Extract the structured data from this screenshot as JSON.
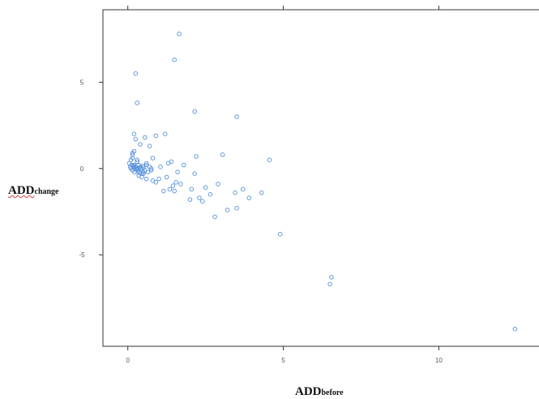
{
  "chart_data": {
    "type": "scatter",
    "xlabel": {
      "main": "ADD",
      "sub": "before"
    },
    "ylabel": {
      "main": "ADD",
      "sub": "change"
    },
    "xlim": [
      -0.8,
      13.3
    ],
    "ylim": [
      -10.3,
      9.2
    ],
    "x_ticks": [
      0,
      5,
      10
    ],
    "y_ticks": [
      -5,
      0,
      5
    ],
    "grid": false,
    "marker": "open-circle",
    "color": "#4a88d8",
    "series": [
      {
        "x": [
          0.05,
          0.08,
          0.1,
          0.12,
          0.15,
          0.18,
          0.2,
          0.22,
          0.25,
          0.28,
          0.3,
          0.32,
          0.35,
          0.38,
          0.4,
          0.42,
          0.45,
          0.48,
          0.5,
          0.55,
          0.6,
          0.65,
          0.7,
          0.75,
          0.8,
          0.1,
          0.15,
          0.2,
          0.3,
          0.35,
          0.45,
          0.55,
          0.6,
          0.75,
          0.9,
          1.0,
          1.05,
          1.15,
          1.25,
          1.3,
          1.35,
          1.4,
          1.45,
          1.5,
          1.55,
          1.6,
          1.7,
          1.8,
          2.0,
          2.05,
          2.15,
          2.2,
          2.3,
          2.4,
          2.5,
          2.65,
          2.8,
          2.9,
          3.05,
          3.2,
          3.45,
          3.5,
          3.7,
          3.9,
          4.3,
          4.55,
          0.2,
          0.25,
          0.3,
          0.15,
          0.25,
          1.5,
          1.65,
          2.15,
          3.5,
          4.9,
          6.55,
          6.5,
          12.45,
          0.7,
          0.9,
          0.15,
          0.4,
          0.6,
          1.2,
          0.3,
          0.5,
          0.2,
          0.35,
          0.5,
          0.8
        ],
        "y": [
          0.3,
          0.1,
          0.0,
          0.2,
          -0.1,
          0.15,
          0.05,
          -0.2,
          0.1,
          -0.05,
          0.0,
          -0.15,
          0.2,
          -0.25,
          0.1,
          0.0,
          -0.3,
          0.15,
          0.05,
          -0.1,
          0.2,
          -0.2,
          0.1,
          0.0,
          -0.7,
          0.5,
          0.8,
          1.0,
          0.5,
          -0.4,
          -0.5,
          1.8,
          0.3,
          -0.1,
          -0.8,
          -0.6,
          0.1,
          -1.3,
          -0.5,
          0.3,
          -1.2,
          0.4,
          -1.0,
          -1.3,
          -0.8,
          -0.2,
          -0.9,
          0.2,
          -1.8,
          -1.2,
          -0.3,
          0.7,
          -1.7,
          -1.9,
          -1.1,
          -1.5,
          -2.8,
          -0.9,
          0.8,
          -2.4,
          -1.4,
          3.0,
          -1.2,
          -1.7,
          -1.4,
          0.5,
          2.0,
          5.5,
          3.8,
          0.9,
          1.7,
          6.3,
          7.8,
          3.3,
          -2.3,
          -3.8,
          -6.3,
          -6.7,
          -9.3,
          1.3,
          1.9,
          0.6,
          1.4,
          -0.6,
          2.0,
          0.4,
          -0.2,
          0.2,
          0.0,
          -0.3,
          0.6
        ]
      }
    ]
  }
}
